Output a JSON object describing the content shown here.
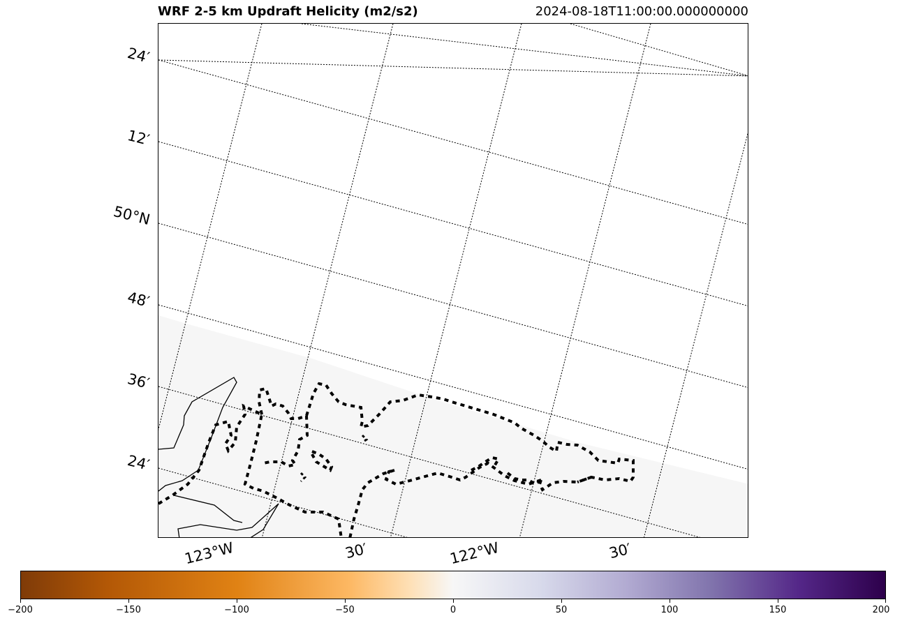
{
  "title": "WRF 2-5 km Updraft Helicity (m2/s2)",
  "timestamp": "2024-08-18T11:00:00.000000000",
  "lat_labels": [
    "24′",
    "12′",
    "50°N",
    "48′",
    "36′",
    "24′"
  ],
  "lon_labels": [
    "123°W",
    "30′",
    "122°W",
    "30′"
  ],
  "colorbar": {
    "cmap": "PuOr",
    "colors": [
      "#7f3b08",
      "#b35806",
      "#e08214",
      "#fdb863",
      "#fee0b6",
      "#f7f7f7",
      "#d8daeb",
      "#b2abd2",
      "#8073ac",
      "#542788",
      "#2d004b"
    ],
    "range": [
      -200,
      200
    ],
    "ticks": [
      "−200",
      "−150",
      "−100",
      "−50",
      "0",
      "50",
      "100",
      "150",
      "200"
    ]
  },
  "field_color": "#f6f6f6",
  "legend": "Updraft Helicity"
}
